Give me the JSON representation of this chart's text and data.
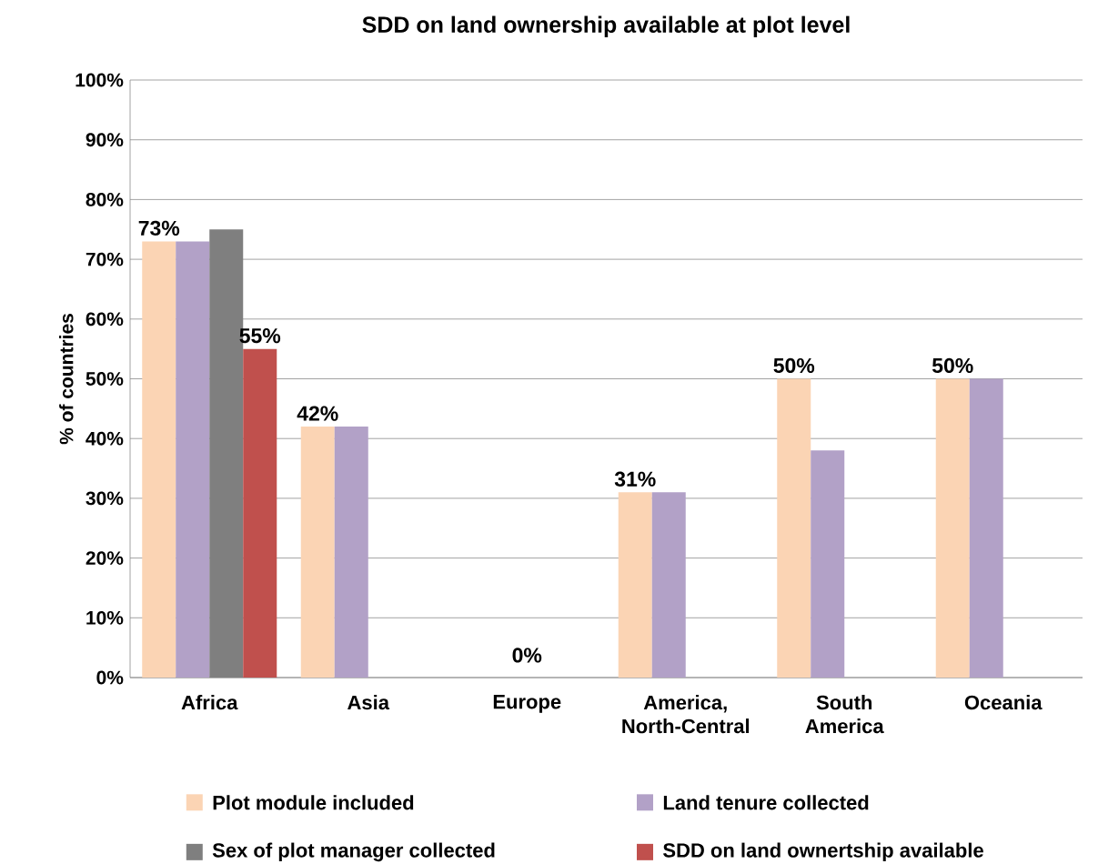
{
  "chart_data": {
    "type": "bar",
    "title": "SDD on land ownership available at plot level",
    "ylabel": "% of countries",
    "categories": [
      "Africa",
      "Asia",
      "Europe",
      "America, North-Central",
      "South America",
      "Oceania"
    ],
    "series": [
      {
        "name": "Plot module included",
        "color": "#fbd4b4",
        "values": [
          73,
          42,
          0,
          31,
          50,
          50
        ],
        "value_labels": [
          "73%",
          "42%",
          null,
          "31%",
          "50%",
          "50%"
        ]
      },
      {
        "name": "Land tenure collected",
        "color": "#b2a1c7",
        "values": [
          73,
          42,
          0,
          31,
          38,
          50
        ]
      },
      {
        "name": "Sex of plot manager collected",
        "color": "#7f7f7f",
        "values": [
          75,
          0,
          0,
          0,
          0,
          0
        ]
      },
      {
        "name": "SDD on land ownertship available",
        "color": "#c0504d",
        "values": [
          55,
          0,
          0,
          0,
          0,
          0
        ],
        "value_labels": [
          "55%",
          null,
          null,
          null,
          null,
          null
        ]
      }
    ],
    "ylim": [
      0,
      100
    ],
    "yticks": [
      {
        "value": 0,
        "label": "0%"
      },
      {
        "value": 10,
        "label": "10%"
      },
      {
        "value": 20,
        "label": "20%"
      },
      {
        "value": 30,
        "label": "30%"
      },
      {
        "value": 40,
        "label": "40%"
      },
      {
        "value": 50,
        "label": "50%"
      },
      {
        "value": 60,
        "label": "60%"
      },
      {
        "value": 70,
        "label": "70%"
      },
      {
        "value": 80,
        "label": "80%"
      },
      {
        "value": 90,
        "label": "90%"
      },
      {
        "value": 100,
        "label": "100%"
      }
    ],
    "annotations": [
      {
        "text": "0%",
        "x": "Europe",
        "y": 0
      }
    ],
    "grid": "y",
    "legend": "bottom"
  }
}
